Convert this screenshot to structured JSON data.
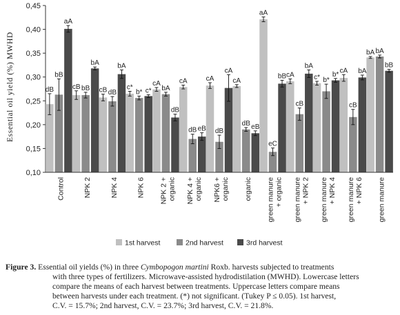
{
  "chart_data": {
    "type": "bar",
    "ylabel": "Essential oil yield (%) MWHD",
    "ylim": [
      0.1,
      0.45
    ],
    "yticks": [
      "0,10",
      "0,15",
      "0,20",
      "0,25",
      "0,30",
      "0,35",
      "0,40",
      "0,45"
    ],
    "grid": false,
    "legend_position": "bottom",
    "categories": [
      [
        "Control"
      ],
      [
        "NPK 2"
      ],
      [
        "NPK 4"
      ],
      [
        "NPK 6"
      ],
      [
        "NPK 2 +",
        "organic"
      ],
      [
        "NPK 4 +",
        "organic"
      ],
      [
        "NPK6 +",
        "organic"
      ],
      [
        "organic"
      ],
      [
        "green manure",
        "+ organic"
      ],
      [
        "green manure",
        "+ NPK 2"
      ],
      [
        "green manure",
        "+ NPK 4"
      ],
      [
        "green manure",
        "+ NPK 6"
      ],
      [
        "green manure"
      ]
    ],
    "series": [
      {
        "name": "1st harvest",
        "color": "#c0c0c0",
        "values": [
          0.243,
          0.262,
          0.257,
          0.265,
          0.274,
          0.279,
          0.282,
          0.281,
          0.421,
          0.291,
          0.287,
          0.298,
          0.341
        ],
        "errors": [
          0.022,
          0.009,
          0.007,
          0.005,
          0.004,
          0.004,
          0.006,
          0.003,
          0.005,
          0.005,
          0.004,
          0.007,
          0.002
        ],
        "labels": [
          "dB",
          "cB",
          "cB",
          "c*",
          "cA",
          "cA",
          "cA",
          "cA",
          "aA",
          "cA",
          "c*",
          "cA",
          "bA"
        ]
      },
      {
        "name": "2nd harvest",
        "color": "#8a8a8a",
        "values": [
          0.263,
          0.262,
          0.249,
          0.256,
          0.264,
          0.17,
          0.164,
          0.19,
          0.143,
          0.222,
          0.27,
          0.216,
          0.343
        ],
        "errors": [
          0.033,
          0.006,
          0.01,
          0.004,
          0.004,
          0.01,
          0.014,
          0.004,
          0.008,
          0.013,
          0.015,
          0.016,
          0.003
        ],
        "labels": [
          "bB",
          "bB",
          "dB",
          "b*",
          "bA",
          "dB",
          "dB",
          "dB",
          "eC",
          "cB",
          "b*",
          "cB",
          "bA"
        ]
      },
      {
        "name": "3rd harvest",
        "color": "#4a4a4a",
        "values": [
          0.401,
          0.318,
          0.306,
          0.26,
          0.215,
          0.175,
          0.277,
          0.182,
          0.286,
          0.307,
          0.293,
          0.299,
          0.313
        ],
        "errors": [
          0.007,
          0.003,
          0.009,
          0.003,
          0.007,
          0.008,
          0.028,
          0.005,
          0.007,
          0.008,
          0.004,
          0.005,
          0.003
        ],
        "labels": [
          "aA",
          "bA",
          "bA",
          "c*",
          "dB",
          "eB",
          "cA",
          "eB",
          "bB",
          "bA",
          "b*",
          "bA",
          "bB"
        ]
      }
    ]
  },
  "caption": {
    "figure_label": "Figure 3.",
    "lines": [
      {
        "pre": "Essential oil yields (%) in three ",
        "italic": "Cymbopogon martini",
        "post": " Roxb. harvests subjected to treatments"
      },
      {
        "pre": "with three types of fertilizers. Microwave-assisted hydrodistilation (MWHD). Lowercase letters"
      },
      {
        "pre": "compare the means of each harvest between treatments. Uppercase letters compare means"
      },
      {
        "pre": "between harvests under each treatment. (*) not significant. (Tukey P ≤ 0.05). 1st harvest,"
      },
      {
        "pre": "C.V. = 15.7%; 2nd harvest, C.V. = 23.7%; 3rd harvest, C.V. = 21.8%."
      }
    ]
  }
}
